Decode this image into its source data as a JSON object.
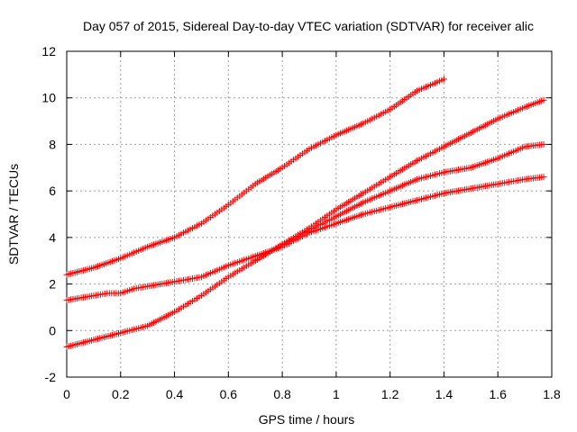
{
  "chart_data": {
    "type": "scatter",
    "title": "Day 057 of 2015, Sidereal Day-to-day VTEC variation (SDTVAR) for receiver alic",
    "xlabel": "GPS time / hours",
    "ylabel": "SDTVAR / TECUs",
    "xlim": [
      0,
      1.8
    ],
    "ylim": [
      -2,
      12
    ],
    "x_ticks": [
      "0",
      "0.2",
      "0.4",
      "0.6",
      "0.8",
      "1",
      "1.2",
      "1.4",
      "1.6",
      "1.8"
    ],
    "y_ticks": [
      "-2",
      "0",
      "2",
      "4",
      "6",
      "8",
      "10",
      "12"
    ],
    "grid": true,
    "marker": "+",
    "marker_color": "#ff0000",
    "series": [
      {
        "name": "trace-1",
        "points": [
          [
            0,
            2.4
          ],
          [
            0.1,
            2.7
          ],
          [
            0.2,
            3.1
          ],
          [
            0.3,
            3.6
          ],
          [
            0.4,
            4.0
          ],
          [
            0.5,
            4.6
          ],
          [
            0.6,
            5.4
          ],
          [
            0.7,
            6.3
          ],
          [
            0.8,
            7.0
          ],
          [
            0.9,
            7.8
          ],
          [
            1.0,
            8.4
          ],
          [
            1.1,
            8.9
          ],
          [
            1.2,
            9.5
          ],
          [
            1.3,
            10.3
          ],
          [
            1.4,
            10.8
          ]
        ]
      },
      {
        "name": "trace-2",
        "points": [
          [
            0,
            1.3
          ],
          [
            0.1,
            1.5
          ],
          [
            0.15,
            1.6
          ],
          [
            0.2,
            1.6
          ],
          [
            0.25,
            1.8
          ],
          [
            0.3,
            1.9
          ],
          [
            0.4,
            2.1
          ],
          [
            0.5,
            2.3
          ],
          [
            0.6,
            2.8
          ],
          [
            0.7,
            3.2
          ],
          [
            0.8,
            3.6
          ],
          [
            0.9,
            4.2
          ],
          [
            1.0,
            4.6
          ],
          [
            1.1,
            5.0
          ],
          [
            1.2,
            5.3
          ],
          [
            1.3,
            5.6
          ],
          [
            1.4,
            5.9
          ],
          [
            1.5,
            6.1
          ],
          [
            1.6,
            6.3
          ],
          [
            1.7,
            6.5
          ],
          [
            1.77,
            6.6
          ]
        ]
      },
      {
        "name": "trace-3",
        "points": [
          [
            0,
            -0.7
          ],
          [
            0.1,
            -0.4
          ],
          [
            0.2,
            -0.1
          ],
          [
            0.3,
            0.2
          ],
          [
            0.4,
            0.8
          ],
          [
            0.5,
            1.5
          ],
          [
            0.6,
            2.3
          ],
          [
            0.7,
            3.0
          ],
          [
            0.8,
            3.7
          ],
          [
            0.9,
            4.4
          ],
          [
            1.0,
            5.2
          ],
          [
            1.1,
            5.9
          ],
          [
            1.2,
            6.6
          ],
          [
            1.3,
            7.3
          ],
          [
            1.4,
            7.9
          ],
          [
            1.5,
            8.5
          ],
          [
            1.6,
            9.1
          ],
          [
            1.7,
            9.6
          ],
          [
            1.77,
            9.9
          ]
        ]
      },
      {
        "name": "trace-4",
        "points": [
          [
            0.7,
            3.0
          ],
          [
            0.8,
            3.7
          ],
          [
            0.9,
            4.3
          ],
          [
            1.0,
            4.9
          ],
          [
            1.1,
            5.5
          ],
          [
            1.2,
            6.0
          ],
          [
            1.3,
            6.5
          ],
          [
            1.4,
            6.8
          ],
          [
            1.5,
            7.0
          ],
          [
            1.6,
            7.4
          ],
          [
            1.7,
            7.9
          ],
          [
            1.77,
            8.0
          ]
        ]
      }
    ]
  }
}
